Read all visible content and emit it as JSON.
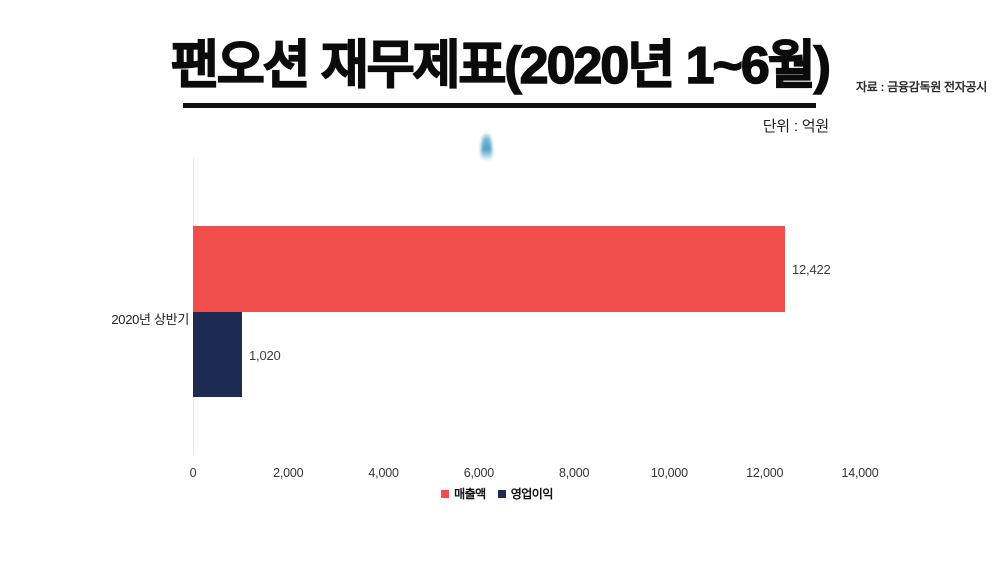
{
  "header": {
    "title": "팬오션 재무제표(2020년 1~6월)",
    "source": "자료 : 금융감독원 전자공시",
    "unit": "단위 : 억원"
  },
  "chart_data": {
    "type": "bar",
    "orientation": "horizontal",
    "title": "팬오션 재무제표(2020년 1~6월)",
    "unit": "억원",
    "categories": [
      "2020년 상반기"
    ],
    "series": [
      {
        "id": "revenue",
        "name": "매출액",
        "values": [
          12422
        ],
        "value_labels": [
          "12,422"
        ],
        "color": "#F04D4D"
      },
      {
        "id": "operating-profit",
        "name": "영업이익",
        "values": [
          1020
        ],
        "value_labels": [
          "1,020"
        ],
        "color": "#1E2A52"
      }
    ],
    "xlabel": "",
    "ylabel": "",
    "xlim": [
      0,
      14000
    ],
    "x_ticks": [
      "0",
      "2,000",
      "4,000",
      "6,000",
      "8,000",
      "10,000",
      "12,000",
      "14,000"
    ],
    "x_tick_values": [
      0,
      2000,
      4000,
      6000,
      8000,
      10000,
      12000,
      14000
    ],
    "grid": false,
    "legend_position": "bottom"
  },
  "decoration": {
    "blue_drop_color_top": "#6fb9d8",
    "blue_drop_color_mid": "#4496c0",
    "axis_line_color": "#e6e4e4"
  }
}
